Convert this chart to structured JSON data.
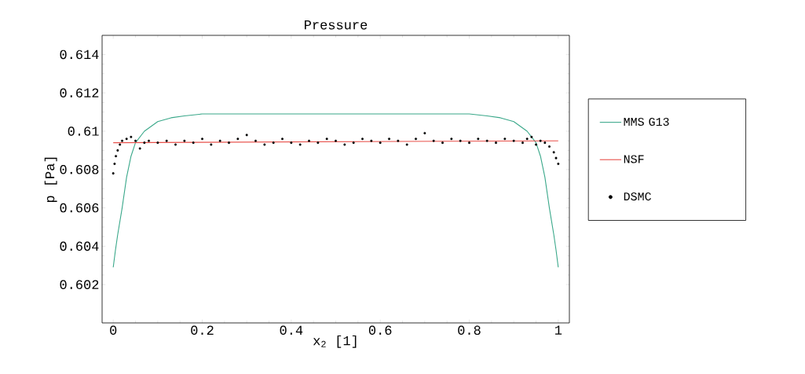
{
  "chart_data": {
    "type": "line",
    "title": "Pressure",
    "xlabel": "x$_{2}$ [1]",
    "ylabel": "p [Pa]",
    "xlim": [
      -0.025,
      1.025
    ],
    "ylim": [
      0.6,
      0.615
    ],
    "xticks": [
      0,
      0.2,
      0.4,
      0.6,
      0.8,
      1
    ],
    "yticks": [
      0.602,
      0.604,
      0.606,
      0.608,
      0.61,
      0.612,
      0.614
    ],
    "grid": false,
    "legend": "right",
    "series": [
      {
        "name": "MMS G13",
        "color": "#3aa88a",
        "x": [
          0,
          0.005,
          0.01,
          0.02,
          0.03,
          0.04,
          0.05,
          0.07,
          0.1,
          0.13,
          0.16,
          0.2,
          0.3,
          0.5,
          0.7,
          0.8,
          0.84,
          0.87,
          0.9,
          0.93,
          0.95,
          0.96,
          0.97,
          0.98,
          0.99,
          0.995,
          1.0
        ],
        "values": [
          0.6029,
          0.6038,
          0.6046,
          0.606,
          0.6076,
          0.6087,
          0.6094,
          0.61,
          0.6105,
          0.6107,
          0.6108,
          0.6109,
          0.6109,
          0.6109,
          0.6109,
          0.6109,
          0.6108,
          0.6107,
          0.6105,
          0.61,
          0.6094,
          0.6087,
          0.6076,
          0.606,
          0.6046,
          0.6038,
          0.6029
        ]
      },
      {
        "name": "NSF",
        "color": "#e8504a",
        "x": [
          0,
          1
        ],
        "values": [
          0.6094,
          0.6095
        ]
      },
      {
        "name": "DSMC",
        "type": "scatter",
        "color": "#000000",
        "x": [
          0,
          0.003,
          0.006,
          0.01,
          0.015,
          0.02,
          0.03,
          0.04,
          0.05,
          0.06,
          0.07,
          0.08,
          0.1,
          0.12,
          0.14,
          0.16,
          0.18,
          0.2,
          0.22,
          0.24,
          0.26,
          0.28,
          0.3,
          0.32,
          0.34,
          0.36,
          0.38,
          0.4,
          0.42,
          0.44,
          0.46,
          0.48,
          0.5,
          0.52,
          0.54,
          0.56,
          0.58,
          0.6,
          0.62,
          0.64,
          0.66,
          0.68,
          0.7,
          0.72,
          0.74,
          0.76,
          0.78,
          0.8,
          0.82,
          0.84,
          0.86,
          0.88,
          0.9,
          0.92,
          0.93,
          0.94,
          0.95,
          0.96,
          0.97,
          0.98,
          0.99,
          0.995,
          1.0
        ],
        "values": [
          0.6078,
          0.6083,
          0.6087,
          0.609,
          0.6093,
          0.6095,
          0.6096,
          0.6097,
          0.6095,
          0.6091,
          0.6094,
          0.6095,
          0.6094,
          0.6095,
          0.6093,
          0.6095,
          0.6094,
          0.6096,
          0.6093,
          0.6095,
          0.6094,
          0.6096,
          0.6098,
          0.6095,
          0.6093,
          0.6094,
          0.6096,
          0.6094,
          0.6093,
          0.6095,
          0.6094,
          0.6096,
          0.6095,
          0.6093,
          0.6094,
          0.6096,
          0.6095,
          0.6094,
          0.6096,
          0.6095,
          0.6093,
          0.6096,
          0.6099,
          0.6095,
          0.6094,
          0.6096,
          0.6095,
          0.6094,
          0.6096,
          0.6095,
          0.6094,
          0.6096,
          0.6095,
          0.6094,
          0.6096,
          0.6097,
          0.6093,
          0.6095,
          0.6094,
          0.6092,
          0.6089,
          0.6086,
          0.6083
        ]
      }
    ]
  }
}
